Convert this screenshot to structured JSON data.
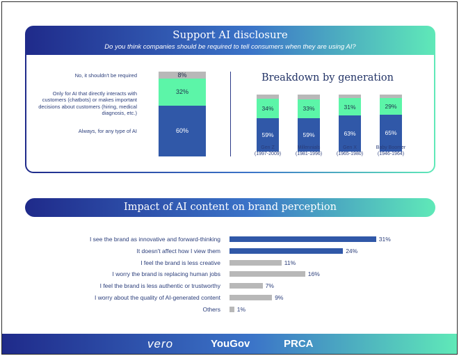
{
  "disclosure": {
    "title": "Support AI disclosure",
    "subtitle": "Do you think companies should be required to tell consumers when they are using AI?",
    "labels": [
      "No, it shouldn't be required",
      "Only for AI that directly interacts with customers (chatbots) or makes important decisions about customers (hiring, medical diagnosis, etc.)",
      "Always, for any type of AI"
    ]
  },
  "generation": {
    "title": "Breakdown by generation",
    "groups": [
      {
        "name": "Gen Z",
        "years": "(1997-2009)"
      },
      {
        "name": "Millennials",
        "years": "(1981-1996)"
      },
      {
        "name": "Gen X",
        "years": "(1965-1980)"
      },
      {
        "name": "Baby Boomer",
        "years": "(1946-1964)"
      }
    ]
  },
  "impact": {
    "title": "Impact of AI content on brand perception"
  },
  "footer": {
    "logos": [
      "vero",
      "YouGov",
      "PRCA"
    ]
  },
  "colors": {
    "dark_blue": "#3058a8",
    "mint": "#5cf5a8",
    "grey": "#b8b8b8"
  },
  "chart_data": [
    {
      "type": "bar",
      "stacked": true,
      "title": "Support AI disclosure",
      "categories": [
        "All"
      ],
      "series": [
        {
          "name": "Always, for any type of AI",
          "values": [
            60
          ],
          "color": "#3058a8"
        },
        {
          "name": "Only for AI that directly interacts with customers (chatbots) or makes important decisions about customers (hiring, medical diagnosis, etc.)",
          "values": [
            32
          ],
          "color": "#5cf5a8"
        },
        {
          "name": "No, it shouldn't be required",
          "values": [
            8
          ],
          "color": "#b8b8b8"
        }
      ],
      "value_labels": [
        "60%",
        "32%",
        "8%"
      ]
    },
    {
      "type": "bar",
      "stacked": true,
      "title": "Breakdown by generation",
      "categories": [
        "Gen Z",
        "Millennials",
        "Gen X",
        "Baby Boomer"
      ],
      "series": [
        {
          "name": "Always, for any type of AI",
          "values": [
            59,
            59,
            63,
            65
          ],
          "labels": [
            "59%",
            "59%",
            "63%",
            "65%"
          ],
          "color": "#3058a8"
        },
        {
          "name": "Only for AI that directly interacts with customers (chatbots) or makes important decisions about customers (hiring, medical diagnosis, etc.)",
          "values": [
            34,
            33,
            31,
            29
          ],
          "labels": [
            "34%",
            "33%",
            "31%",
            "29%"
          ],
          "color": "#5cf5a8"
        },
        {
          "name": "No, it shouldn't be required",
          "values": [
            7,
            8,
            6,
            6
          ],
          "color": "#b8b8b8"
        }
      ]
    },
    {
      "type": "bar",
      "orientation": "horizontal",
      "title": "Impact of AI content on brand perception",
      "categories": [
        "I see the brand as innovative and forward-thinking",
        "It doesn't affect how I view them",
        "I feel the brand is less creative",
        "I worry the brand is replacing human jobs",
        "I feel the brand is less authentic or trustworthy",
        "I worry about the quality of AI-generated content",
        "Others"
      ],
      "values": [
        31,
        24,
        11,
        16,
        7,
        9,
        1
      ],
      "value_labels": [
        "31%",
        "24%",
        "11%",
        "16%",
        "7%",
        "9%",
        "1%"
      ],
      "bar_colors": [
        "#3058a8",
        "#3058a8",
        "#b8b8b8",
        "#b8b8b8",
        "#b8b8b8",
        "#b8b8b8",
        "#b8b8b8"
      ]
    }
  ]
}
